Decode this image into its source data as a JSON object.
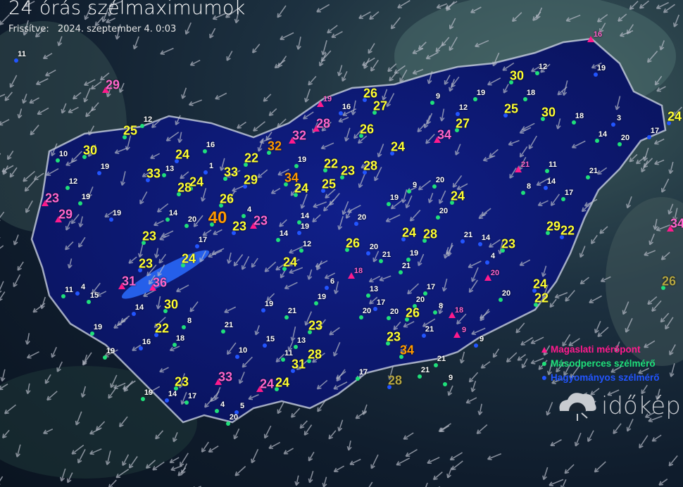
{
  "header": {
    "title": "24 órás szélmaximumok",
    "updated_label": "Frissítve:",
    "updated_value": "2024. szeptember 4. 0:03"
  },
  "legend": {
    "items": [
      {
        "label": "Magaslati mérőpont",
        "symbol": "triangle",
        "color": "#ff1a8c"
      },
      {
        "label": "Másodperces szélmérő",
        "symbol": "circle",
        "color": "#1fe07a"
      },
      {
        "label": "Hagyományos szélmérő",
        "symbol": "circle",
        "color": "#1f4fff"
      }
    ]
  },
  "logo": {
    "text": "időkép"
  },
  "colors": {
    "yellow": "#ffff33",
    "orange": "#ff9900",
    "pink": "#ff66cc",
    "white": "#ffffff",
    "olive": "#b5a642",
    "country": "#0d1a6e",
    "border": "#c8d0e0"
  },
  "stations": [
    {
      "v": "29",
      "c": "pink"
    },
    {
      "v": "25",
      "c": "yellow"
    },
    {
      "v": "30",
      "c": "yellow"
    },
    {
      "v": "33",
      "c": "yellow"
    },
    {
      "v": "28",
      "c": "yellow"
    },
    {
      "v": "33",
      "c": "yellow"
    },
    {
      "v": "29",
      "c": "yellow"
    },
    {
      "v": "40",
      "c": "orange"
    },
    {
      "v": "32",
      "c": "orange"
    },
    {
      "v": "32",
      "c": "pink"
    },
    {
      "v": "28",
      "c": "pink"
    },
    {
      "v": "34",
      "c": "orange"
    },
    {
      "v": "26",
      "c": "yellow"
    },
    {
      "v": "27",
      "c": "yellow"
    },
    {
      "v": "26",
      "c": "yellow"
    },
    {
      "v": "28",
      "c": "yellow"
    },
    {
      "v": "30",
      "c": "yellow"
    },
    {
      "v": "30",
      "c": "yellow"
    },
    {
      "v": "25",
      "c": "yellow"
    },
    {
      "v": "27",
      "c": "yellow"
    },
    {
      "v": "34",
      "c": "pink"
    },
    {
      "v": "24",
      "c": "yellow"
    },
    {
      "v": "22",
      "c": "yellow"
    },
    {
      "v": "23",
      "c": "yellow"
    },
    {
      "v": "25",
      "c": "yellow"
    },
    {
      "v": "24",
      "c": "yellow"
    },
    {
      "v": "22",
      "c": "yellow"
    },
    {
      "v": "24",
      "c": "yellow"
    },
    {
      "v": "24",
      "c": "yellow"
    },
    {
      "v": "26",
      "c": "yellow"
    },
    {
      "v": "23",
      "c": "yellow"
    },
    {
      "v": "23",
      "c": "pink"
    },
    {
      "v": "23",
      "c": "yellow"
    },
    {
      "v": "23",
      "c": "yellow"
    },
    {
      "v": "24",
      "c": "yellow"
    },
    {
      "v": "24",
      "c": "yellow"
    },
    {
      "v": "36",
      "c": "pink"
    },
    {
      "v": "31",
      "c": "pink"
    },
    {
      "v": "30",
      "c": "yellow"
    },
    {
      "v": "22",
      "c": "yellow"
    },
    {
      "v": "23",
      "c": "yellow"
    },
    {
      "v": "28",
      "c": "yellow"
    },
    {
      "v": "31",
      "c": "yellow"
    },
    {
      "v": "24",
      "c": "yellow"
    },
    {
      "v": "33",
      "c": "pink"
    },
    {
      "v": "24",
      "c": "pink"
    },
    {
      "v": "23",
      "c": "yellow"
    },
    {
      "v": "34",
      "c": "orange"
    },
    {
      "v": "28",
      "c": "olive"
    },
    {
      "v": "23",
      "c": "yellow"
    },
    {
      "v": "26",
      "c": "yellow"
    },
    {
      "v": "24",
      "c": "yellow"
    },
    {
      "v": "22",
      "c": "yellow"
    },
    {
      "v": "29",
      "c": "yellow"
    },
    {
      "v": "22",
      "c": "yellow"
    },
    {
      "v": "23",
      "c": "yellow"
    },
    {
      "v": "24",
      "c": "yellow"
    },
    {
      "v": "24",
      "c": "yellow"
    },
    {
      "v": "28",
      "c": "yellow"
    },
    {
      "v": "26",
      "c": "yellow"
    },
    {
      "v": "24",
      "c": "yellow"
    },
    {
      "v": "34",
      "c": "pink"
    },
    {
      "v": "26",
      "c": "olive"
    },
    {
      "v": "20",
      "c": "pink"
    },
    {
      "v": "18",
      "c": "pink"
    },
    {
      "v": "18",
      "c": "pink"
    },
    {
      "v": "9",
      "c": "pink"
    },
    {
      "v": "21",
      "c": "pink"
    },
    {
      "v": "16",
      "c": "pink"
    },
    {
      "v": "23",
      "c": "pink"
    },
    {
      "v": "29",
      "c": "pink"
    },
    {
      "v": "19",
      "c": "pink"
    },
    {
      "v": "11",
      "c": "white"
    },
    {
      "v": "12",
      "c": "white"
    },
    {
      "v": "10",
      "c": "white"
    },
    {
      "v": "19",
      "c": "white"
    },
    {
      "v": "12",
      "c": "white"
    },
    {
      "v": "19",
      "c": "white"
    },
    {
      "v": "19",
      "c": "white"
    },
    {
      "v": "14",
      "c": "white"
    },
    {
      "v": "20",
      "c": "white"
    },
    {
      "v": "17",
      "c": "white"
    },
    {
      "v": "16",
      "c": "white"
    },
    {
      "v": "4",
      "c": "white"
    },
    {
      "v": "1",
      "c": "white"
    },
    {
      "v": "13",
      "c": "white"
    },
    {
      "v": "19",
      "c": "white"
    },
    {
      "v": "16",
      "c": "white"
    },
    {
      "v": "14",
      "c": "white"
    },
    {
      "v": "9",
      "c": "white"
    },
    {
      "v": "12",
      "c": "white"
    },
    {
      "v": "19",
      "c": "white"
    },
    {
      "v": "12",
      "c": "white"
    },
    {
      "v": "19",
      "c": "white"
    },
    {
      "v": "18",
      "c": "white"
    },
    {
      "v": "18",
      "c": "white"
    },
    {
      "v": "3",
      "c": "white"
    },
    {
      "v": "14",
      "c": "white"
    },
    {
      "v": "20",
      "c": "white"
    },
    {
      "v": "17",
      "c": "white"
    },
    {
      "v": "11",
      "c": "white"
    },
    {
      "v": "8",
      "c": "white"
    },
    {
      "v": "14",
      "c": "white"
    },
    {
      "v": "17",
      "c": "white"
    },
    {
      "v": "21",
      "c": "white"
    },
    {
      "v": "14",
      "c": "white"
    },
    {
      "v": "20",
      "c": "white"
    },
    {
      "v": "20",
      "c": "white"
    },
    {
      "v": "4",
      "c": "white"
    },
    {
      "v": "9",
      "c": "white"
    },
    {
      "v": "19",
      "c": "white"
    },
    {
      "v": "20",
      "c": "white"
    },
    {
      "v": "19",
      "c": "white"
    },
    {
      "v": "21",
      "c": "white"
    },
    {
      "v": "19",
      "c": "white"
    },
    {
      "v": "12",
      "c": "white"
    },
    {
      "v": "14",
      "c": "white"
    },
    {
      "v": "6",
      "c": "white"
    },
    {
      "v": "19",
      "c": "white"
    },
    {
      "v": "13",
      "c": "white"
    },
    {
      "v": "19",
      "c": "white"
    },
    {
      "v": "21",
      "c": "white"
    },
    {
      "v": "20",
      "c": "white"
    },
    {
      "v": "17",
      "c": "white"
    },
    {
      "v": "20",
      "c": "white"
    },
    {
      "v": "17",
      "c": "white"
    },
    {
      "v": "21",
      "c": "white"
    },
    {
      "v": "20",
      "c": "white"
    },
    {
      "v": "8",
      "c": "white"
    },
    {
      "v": "21",
      "c": "white"
    },
    {
      "v": "21",
      "c": "white"
    },
    {
      "v": "21",
      "c": "white"
    },
    {
      "v": "20",
      "c": "white"
    },
    {
      "v": "21",
      "c": "white"
    },
    {
      "v": "20",
      "c": "white"
    },
    {
      "v": "15",
      "c": "white"
    },
    {
      "v": "13",
      "c": "white"
    },
    {
      "v": "11",
      "c": "white"
    },
    {
      "v": "10",
      "c": "white"
    },
    {
      "v": "8",
      "c": "white"
    },
    {
      "v": "18",
      "c": "white"
    },
    {
      "v": "16",
      "c": "white"
    },
    {
      "v": "19",
      "c": "white"
    },
    {
      "v": "19",
      "c": "white"
    },
    {
      "v": "4",
      "c": "white"
    },
    {
      "v": "11",
      "c": "white"
    },
    {
      "v": "15",
      "c": "white"
    },
    {
      "v": "14",
      "c": "white"
    },
    {
      "v": "9",
      "c": "white"
    },
    {
      "v": "19",
      "c": "white"
    },
    {
      "v": "14",
      "c": "white"
    },
    {
      "v": "17",
      "c": "white"
    },
    {
      "v": "4",
      "c": "white"
    },
    {
      "v": "5",
      "c": "white"
    },
    {
      "v": "20",
      "c": "white"
    },
    {
      "v": "17",
      "c": "white"
    },
    {
      "v": "9",
      "c": "white"
    },
    {
      "v": "21",
      "c": "white"
    }
  ]
}
